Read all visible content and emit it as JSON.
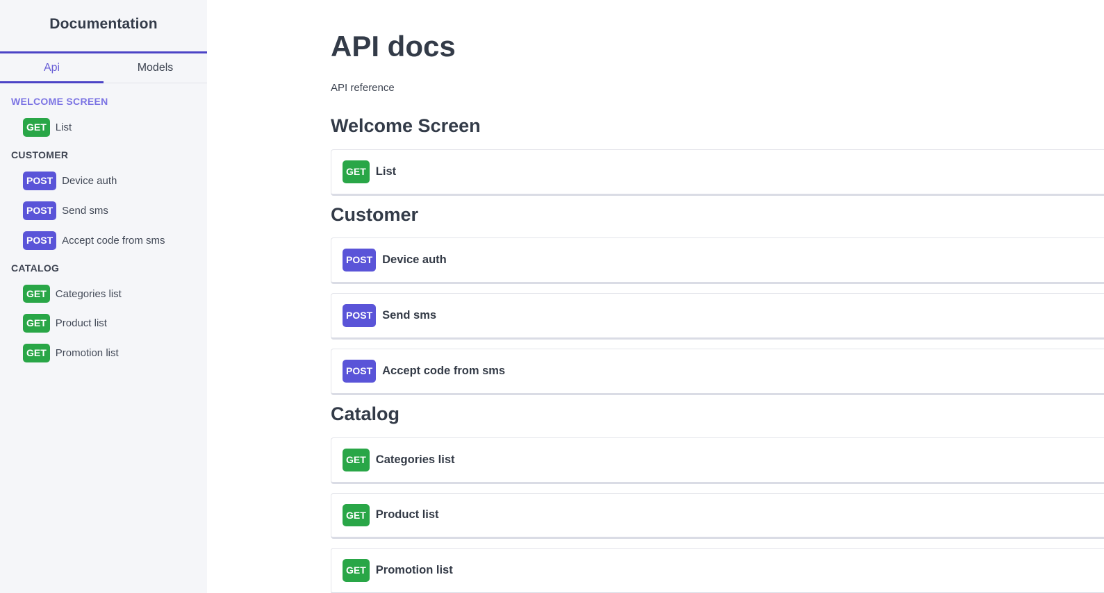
{
  "sidebar": {
    "title": "Documentation",
    "tabs": [
      {
        "label": "Api",
        "active": true
      },
      {
        "label": "Models",
        "active": false
      }
    ],
    "sections": [
      {
        "label": "WELCOME SCREEN",
        "active": true,
        "items": [
          {
            "method": "GET",
            "label": "List"
          }
        ]
      },
      {
        "label": "CUSTOMER",
        "active": false,
        "items": [
          {
            "method": "POST",
            "label": "Device auth"
          },
          {
            "method": "POST",
            "label": "Send sms"
          },
          {
            "method": "POST",
            "label": "Accept code from sms"
          }
        ]
      },
      {
        "label": "CATALOG",
        "active": false,
        "items": [
          {
            "method": "GET",
            "label": "Categories list"
          },
          {
            "method": "GET",
            "label": "Product list"
          },
          {
            "method": "GET",
            "label": "Promotion list"
          }
        ]
      }
    ]
  },
  "main": {
    "title": "API docs",
    "subtitle": "API reference",
    "sections": [
      {
        "heading": "Welcome Screen",
        "endpoints": [
          {
            "method": "GET",
            "label": "List"
          }
        ]
      },
      {
        "heading": "Customer",
        "endpoints": [
          {
            "method": "POST",
            "label": "Device auth"
          },
          {
            "method": "POST",
            "label": "Send sms"
          },
          {
            "method": "POST",
            "label": "Accept code from sms"
          }
        ]
      },
      {
        "heading": "Catalog",
        "endpoints": [
          {
            "method": "GET",
            "label": "Categories list"
          },
          {
            "method": "GET",
            "label": "Product list"
          },
          {
            "method": "GET",
            "label": "Promotion list"
          }
        ]
      }
    ]
  },
  "colors": {
    "get_badge": "#29a647",
    "post_badge": "#5a54d8",
    "accent_line": "#4c44c6",
    "active_tab_text": "#685ed6",
    "active_section_text": "#7b73e3",
    "sidebar_background": "#f5f6f9",
    "card_border": "#e3e4ea",
    "heading_text": "#333b48"
  }
}
